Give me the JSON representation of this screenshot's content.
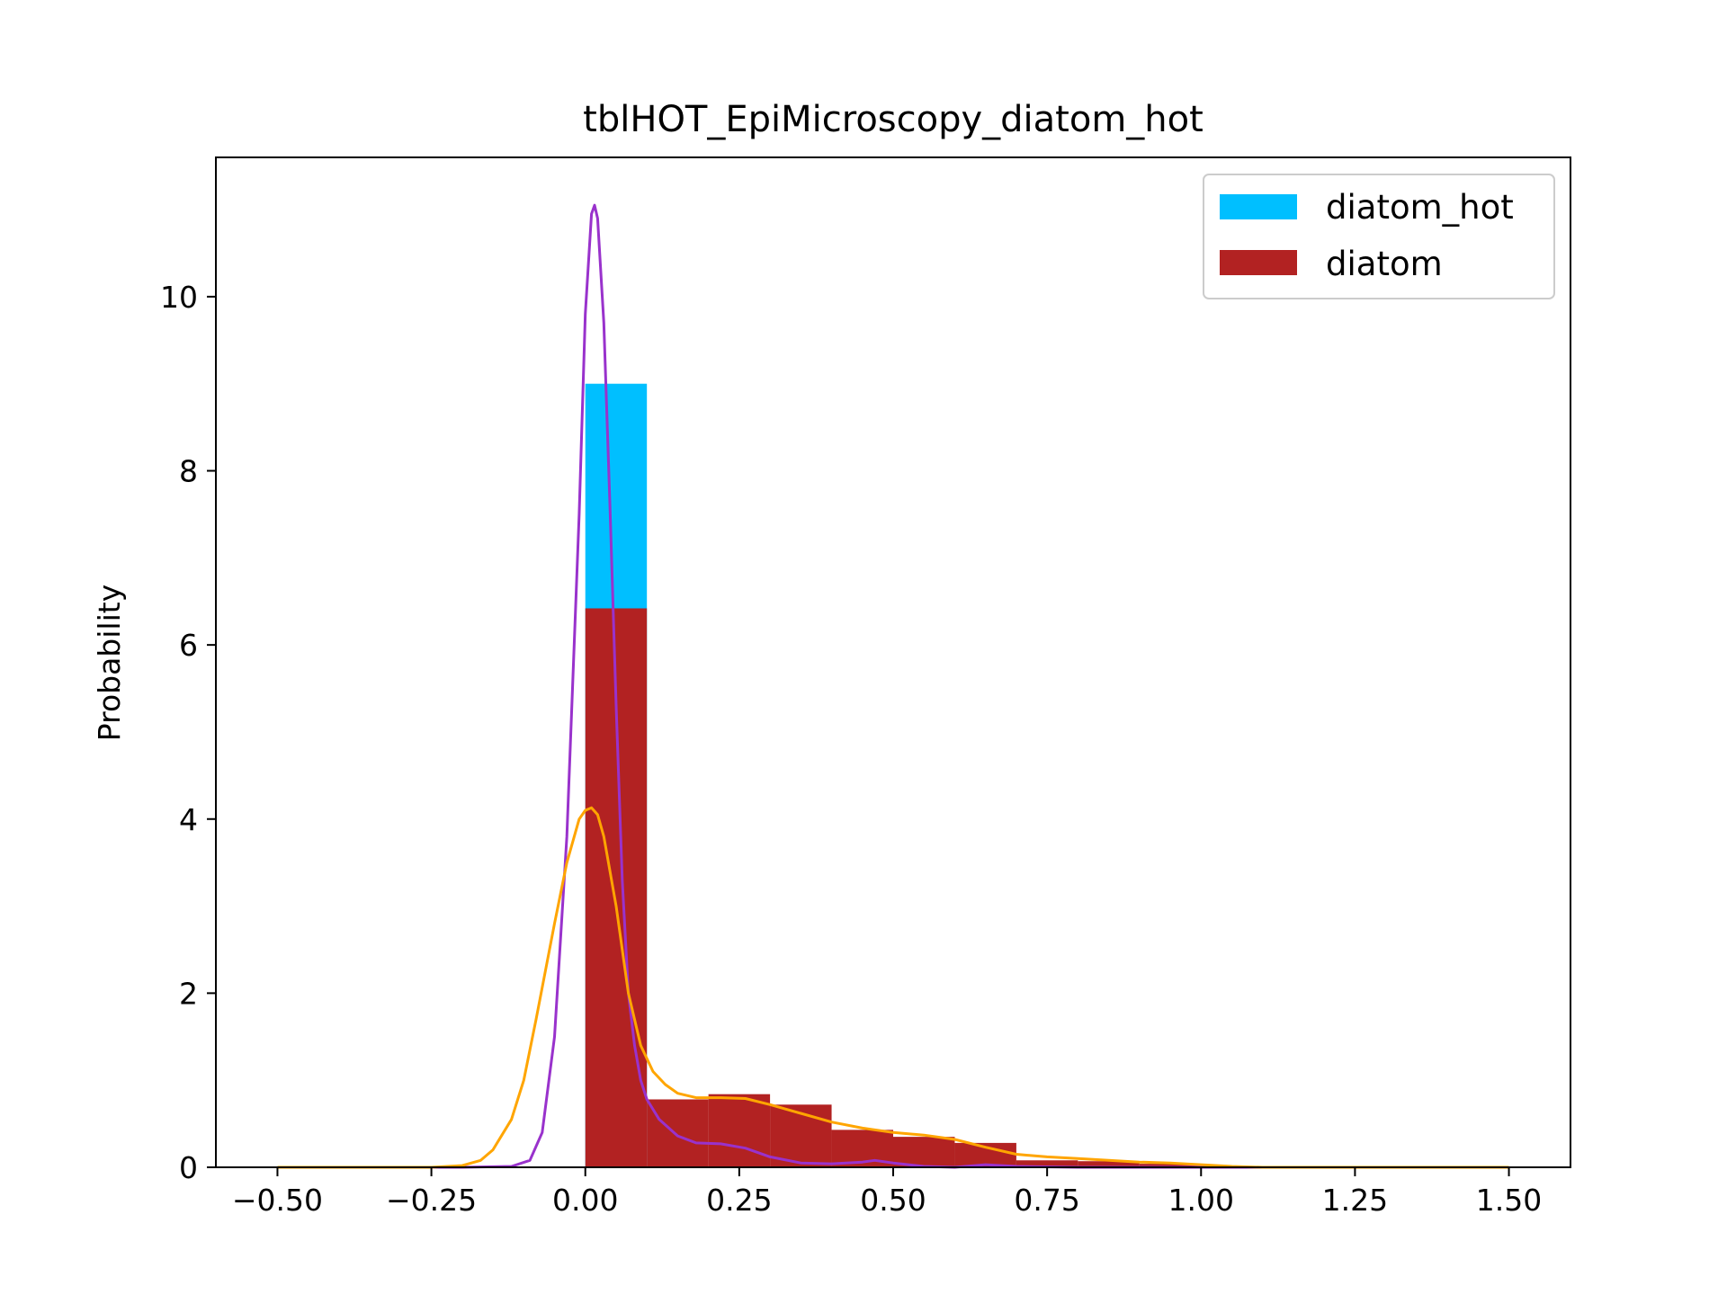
{
  "chart_data": {
    "type": "histogram",
    "title": "tblHOT_EpiMicroscopy_diatom_hot",
    "xlabel": "",
    "ylabel": "Probability",
    "xlim": [
      -0.6,
      1.6
    ],
    "ylim": [
      0,
      11.6
    ],
    "grid": false,
    "legend_position": "top-right",
    "x_ticks": [
      {
        "value": -0.5,
        "label": "−0.50"
      },
      {
        "value": -0.25,
        "label": "−0.25"
      },
      {
        "value": 0.0,
        "label": "0.00"
      },
      {
        "value": 0.25,
        "label": "0.25"
      },
      {
        "value": 0.5,
        "label": "0.50"
      },
      {
        "value": 0.75,
        "label": "0.75"
      },
      {
        "value": 1.0,
        "label": "1.00"
      },
      {
        "value": 1.25,
        "label": "1.25"
      },
      {
        "value": 1.5,
        "label": "1.50"
      }
    ],
    "y_ticks": [
      {
        "value": 0,
        "label": "0"
      },
      {
        "value": 2,
        "label": "2"
      },
      {
        "value": 4,
        "label": "4"
      },
      {
        "value": 6,
        "label": "6"
      },
      {
        "value": 8,
        "label": "8"
      },
      {
        "value": 10,
        "label": "10"
      }
    ],
    "series": [
      {
        "name": "diatom_hot",
        "kind": "histogram",
        "color": "#00bfff",
        "bins": [
          [
            0.0,
            0.1,
            9.0
          ]
        ]
      },
      {
        "name": "diatom",
        "kind": "histogram",
        "color": "#b22222",
        "bins": [
          [
            0.0,
            0.1,
            6.42
          ],
          [
            0.1,
            0.2,
            0.78
          ],
          [
            0.2,
            0.3,
            0.84
          ],
          [
            0.3,
            0.4,
            0.72
          ],
          [
            0.4,
            0.5,
            0.43
          ],
          [
            0.5,
            0.6,
            0.35
          ],
          [
            0.6,
            0.7,
            0.28
          ],
          [
            0.7,
            0.8,
            0.08
          ],
          [
            0.8,
            0.9,
            0.07
          ],
          [
            0.9,
            1.0,
            0.04
          ]
        ]
      },
      {
        "kind": "kde",
        "color": "#9932cc",
        "points": [
          [
            -0.5,
            0
          ],
          [
            -0.2,
            0
          ],
          [
            -0.12,
            0.01
          ],
          [
            -0.09,
            0.08
          ],
          [
            -0.07,
            0.4
          ],
          [
            -0.05,
            1.5
          ],
          [
            -0.03,
            3.8
          ],
          [
            -0.01,
            7.5
          ],
          [
            0.0,
            9.8
          ],
          [
            0.01,
            10.95
          ],
          [
            0.015,
            11.05
          ],
          [
            0.02,
            10.9
          ],
          [
            0.03,
            9.7
          ],
          [
            0.04,
            7.6
          ],
          [
            0.05,
            5.3
          ],
          [
            0.06,
            3.3
          ],
          [
            0.07,
            2.0
          ],
          [
            0.08,
            1.4
          ],
          [
            0.09,
            1.0
          ],
          [
            0.1,
            0.78
          ],
          [
            0.12,
            0.55
          ],
          [
            0.15,
            0.36
          ],
          [
            0.18,
            0.28
          ],
          [
            0.22,
            0.27
          ],
          [
            0.26,
            0.22
          ],
          [
            0.3,
            0.12
          ],
          [
            0.35,
            0.05
          ],
          [
            0.4,
            0.04
          ],
          [
            0.45,
            0.06
          ],
          [
            0.47,
            0.08
          ],
          [
            0.5,
            0.05
          ],
          [
            0.55,
            0.01
          ],
          [
            0.6,
            0.0
          ],
          [
            0.65,
            0.03
          ],
          [
            0.7,
            0.01
          ],
          [
            0.8,
            0.0
          ],
          [
            1.5,
            0
          ]
        ]
      },
      {
        "kind": "kde",
        "color": "#ffa500",
        "points": [
          [
            -0.5,
            0
          ],
          [
            -0.25,
            0.0
          ],
          [
            -0.2,
            0.02
          ],
          [
            -0.17,
            0.08
          ],
          [
            -0.15,
            0.2
          ],
          [
            -0.12,
            0.55
          ],
          [
            -0.1,
            1.0
          ],
          [
            -0.08,
            1.7
          ],
          [
            -0.05,
            2.8
          ],
          [
            -0.03,
            3.5
          ],
          [
            -0.01,
            4.0
          ],
          [
            0.0,
            4.1
          ],
          [
            0.01,
            4.13
          ],
          [
            0.02,
            4.05
          ],
          [
            0.03,
            3.8
          ],
          [
            0.05,
            3.0
          ],
          [
            0.07,
            2.0
          ],
          [
            0.09,
            1.4
          ],
          [
            0.11,
            1.1
          ],
          [
            0.13,
            0.95
          ],
          [
            0.15,
            0.85
          ],
          [
            0.18,
            0.8
          ],
          [
            0.22,
            0.8
          ],
          [
            0.26,
            0.79
          ],
          [
            0.3,
            0.72
          ],
          [
            0.35,
            0.62
          ],
          [
            0.4,
            0.52
          ],
          [
            0.45,
            0.45
          ],
          [
            0.5,
            0.4
          ],
          [
            0.55,
            0.37
          ],
          [
            0.6,
            0.32
          ],
          [
            0.65,
            0.23
          ],
          [
            0.7,
            0.15
          ],
          [
            0.75,
            0.12
          ],
          [
            0.8,
            0.1
          ],
          [
            0.85,
            0.08
          ],
          [
            0.9,
            0.06
          ],
          [
            0.95,
            0.05
          ],
          [
            1.0,
            0.03
          ],
          [
            1.05,
            0.01
          ],
          [
            1.1,
            0.0
          ],
          [
            1.5,
            0.0
          ]
        ]
      }
    ]
  }
}
